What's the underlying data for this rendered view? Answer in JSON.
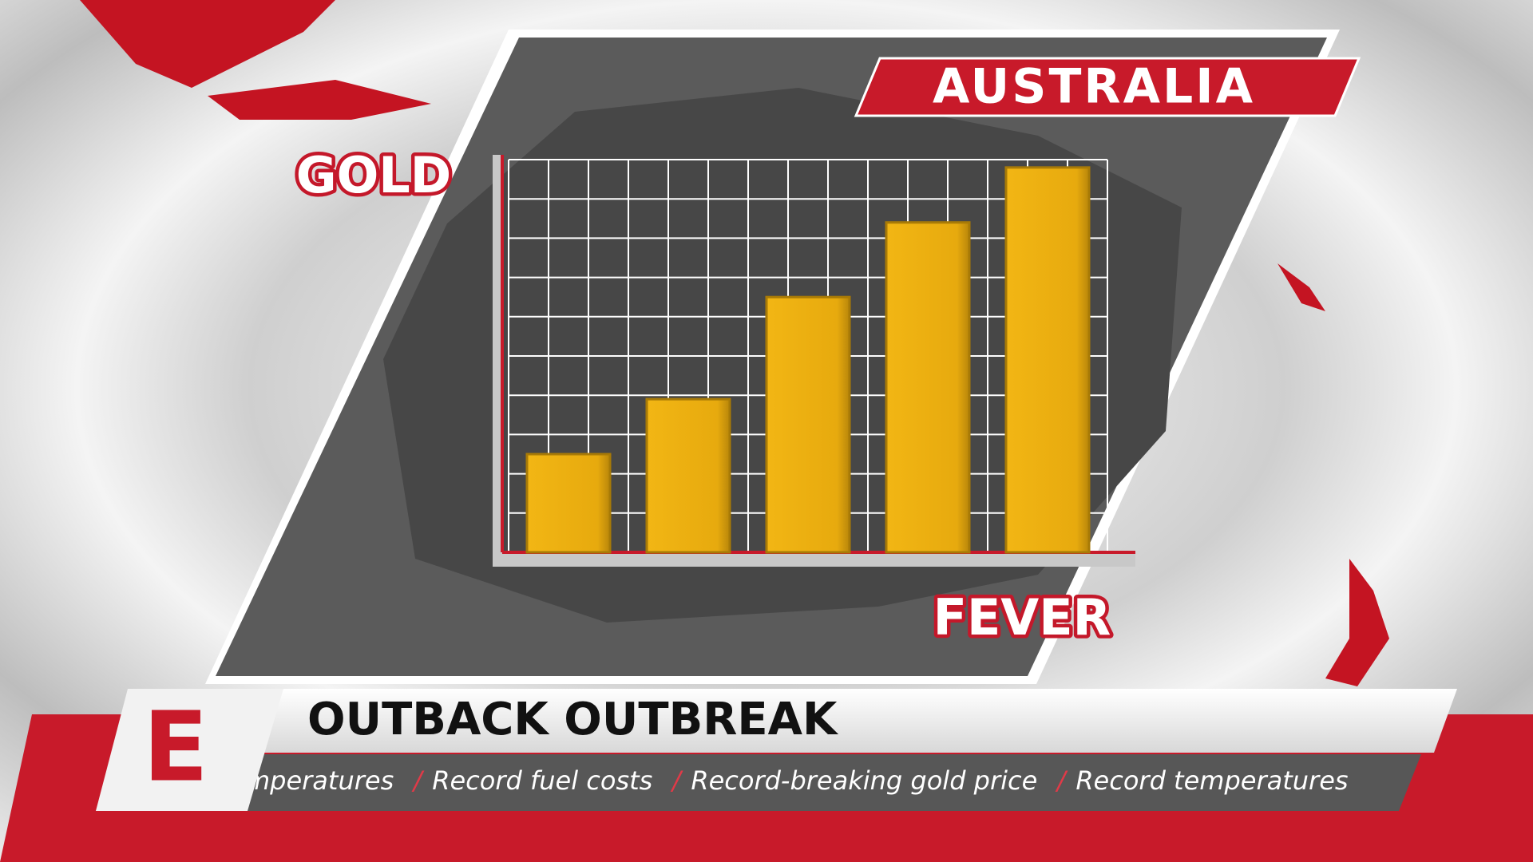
{
  "banner": "AUSTRALIA",
  "headline": "OUTBACK OUTBREAK",
  "logo": "E",
  "ticker": [
    "Record temperatures",
    "Record fuel costs",
    "Record-breaking gold price",
    "Record temperatures"
  ],
  "chart_data": {
    "type": "bar",
    "title": "GOLD",
    "subtitle": "FEVER",
    "categories": [
      null,
      null,
      null,
      null,
      null
    ],
    "values": [
      2.5,
      3.9,
      6.5,
      8.4,
      9.8
    ],
    "color": "#e8ac10",
    "ylim": [
      0,
      10
    ],
    "yticks": [
      0,
      1,
      2,
      3,
      4,
      5,
      6,
      7,
      8,
      9,
      10
    ],
    "grid": true
  }
}
